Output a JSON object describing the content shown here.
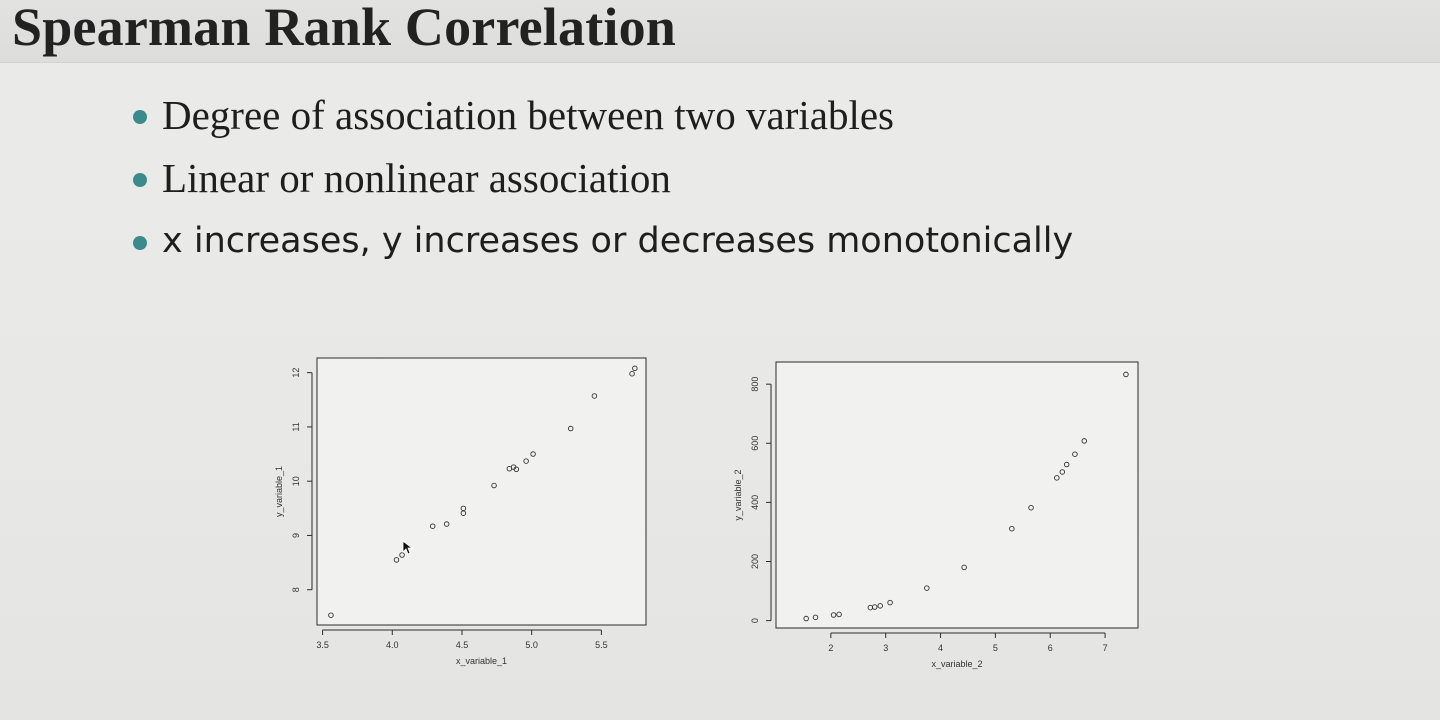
{
  "slide": {
    "title": "Spearman Rank Correlation",
    "bullets": [
      "Degree of association between two variables",
      "Linear or nonlinear association",
      "x increases, y increases or decreases monotonically"
    ],
    "bullet_color": "#3c8b8c"
  },
  "chart_data": [
    {
      "type": "scatter",
      "xlabel": "x_variable_1",
      "ylabel": "y_variable_1",
      "xlim": [
        3.46,
        5.82
      ],
      "ylim": [
        7.35,
        12.27
      ],
      "xticks": [
        3.5,
        4.0,
        4.5,
        5.0,
        5.5
      ],
      "xtick_labels": [
        "3.5",
        "4.0",
        "4.5",
        "5.0",
        "5.5"
      ],
      "yticks": [
        8,
        9,
        10,
        11,
        12
      ],
      "ytick_labels": [
        "8",
        "9",
        "10",
        "11",
        "12"
      ],
      "marker": "open-circle",
      "grid": false,
      "points": [
        {
          "x": 3.56,
          "y": 7.53
        },
        {
          "x": 4.03,
          "y": 8.55
        },
        {
          "x": 4.07,
          "y": 8.64
        },
        {
          "x": 4.29,
          "y": 9.17
        },
        {
          "x": 4.39,
          "y": 9.21
        },
        {
          "x": 4.51,
          "y": 9.41
        },
        {
          "x": 4.51,
          "y": 9.5
        },
        {
          "x": 4.73,
          "y": 9.92
        },
        {
          "x": 4.84,
          "y": 10.23
        },
        {
          "x": 4.87,
          "y": 10.26
        },
        {
          "x": 4.89,
          "y": 10.22
        },
        {
          "x": 4.96,
          "y": 10.37
        },
        {
          "x": 5.01,
          "y": 10.5
        },
        {
          "x": 5.28,
          "y": 10.97
        },
        {
          "x": 5.45,
          "y": 11.57
        },
        {
          "x": 5.72,
          "y": 11.98
        },
        {
          "x": 5.74,
          "y": 12.08
        }
      ]
    },
    {
      "type": "scatter",
      "xlabel": "x_variable_2",
      "ylabel": "y_variable_2",
      "xlim": [
        1.0,
        7.6
      ],
      "ylim": [
        -25,
        875
      ],
      "xticks": [
        2,
        3,
        4,
        5,
        6,
        7
      ],
      "xtick_labels": [
        "2",
        "3",
        "4",
        "5",
        "6",
        "7"
      ],
      "yticks": [
        0,
        200,
        400,
        600,
        800
      ],
      "ytick_labels": [
        "0",
        "200",
        "400",
        "600",
        "800"
      ],
      "marker": "open-circle",
      "grid": false,
      "points": [
        {
          "x": 1.55,
          "y": 7
        },
        {
          "x": 1.72,
          "y": 11
        },
        {
          "x": 2.05,
          "y": 19
        },
        {
          "x": 2.15,
          "y": 21
        },
        {
          "x": 2.72,
          "y": 44
        },
        {
          "x": 2.8,
          "y": 46
        },
        {
          "x": 2.9,
          "y": 50
        },
        {
          "x": 3.08,
          "y": 61
        },
        {
          "x": 3.75,
          "y": 110
        },
        {
          "x": 4.43,
          "y": 180
        },
        {
          "x": 5.3,
          "y": 311
        },
        {
          "x": 5.65,
          "y": 382
        },
        {
          "x": 6.12,
          "y": 483
        },
        {
          "x": 6.22,
          "y": 503
        },
        {
          "x": 6.3,
          "y": 528
        },
        {
          "x": 6.45,
          "y": 563
        },
        {
          "x": 6.62,
          "y": 608
        },
        {
          "x": 7.38,
          "y": 833
        }
      ]
    }
  ]
}
